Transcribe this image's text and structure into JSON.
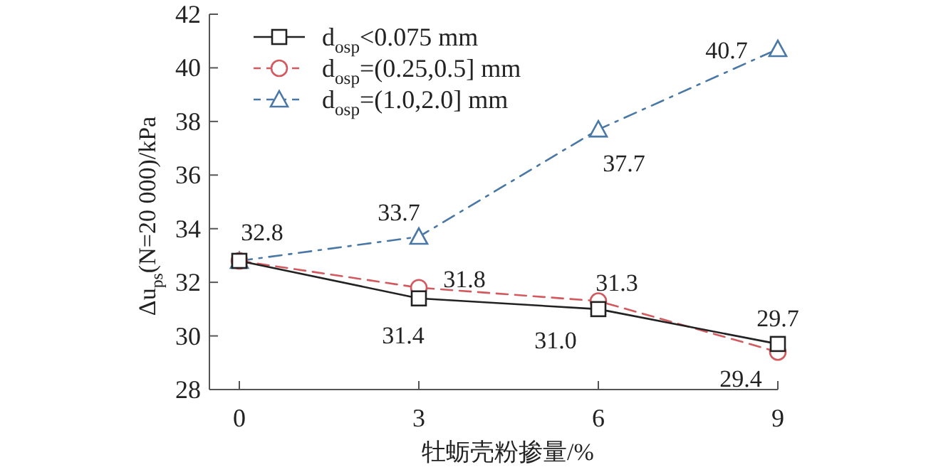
{
  "chart_data": {
    "type": "line",
    "xlabel": "牡蛎壳粉掺量/%",
    "ylabel": "Δu$_{ps}$(N=20 000)/kPa",
    "x": [
      0,
      3,
      6,
      9
    ],
    "xlim": [
      -0.5,
      9
    ],
    "xticks": [
      0,
      3,
      6,
      9
    ],
    "ylim": [
      28,
      42
    ],
    "yticks": [
      28,
      30,
      32,
      34,
      36,
      38,
      40,
      42
    ],
    "legend": "top left",
    "series": [
      {
        "name": "d$_{osp}$<0.075 mm",
        "color": "#222222",
        "marker": "square",
        "line_style": "solid",
        "values": [
          32.8,
          31.4,
          31.0,
          29.7
        ],
        "value_labels": [
          "32.8",
          "31.4",
          "31.0",
          "29.7"
        ]
      },
      {
        "name": "d$_{osp}$=(0.25,0.5] mm",
        "color": "#d25a5f",
        "marker": "circle",
        "line_style": "dashed",
        "values": [
          32.8,
          31.8,
          31.3,
          29.4
        ],
        "value_labels": [
          null,
          "31.8",
          "31.3",
          "29.4"
        ]
      },
      {
        "name": "d$_{osp}$=(1.0,2.0] mm",
        "color": "#4a78a6",
        "marker": "triangle",
        "line_style": "dashdot",
        "values": [
          32.8,
          33.7,
          37.7,
          40.7
        ],
        "value_labels": [
          null,
          "33.7",
          "37.7",
          "40.7"
        ]
      }
    ]
  }
}
